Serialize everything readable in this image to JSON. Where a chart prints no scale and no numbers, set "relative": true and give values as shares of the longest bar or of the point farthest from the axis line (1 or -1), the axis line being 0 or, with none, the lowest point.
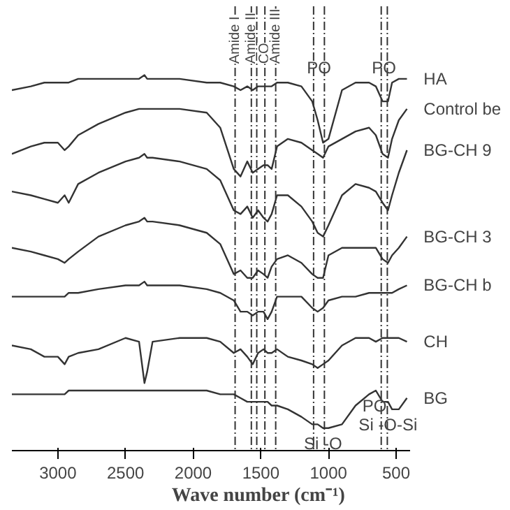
{
  "chart_data": {
    "type": "line",
    "relative": true,
    "xlabel": "Wave number (cm⁻¹)",
    "xlim": [
      3340,
      400
    ],
    "xticks": [
      3000,
      2500,
      2000,
      1500,
      1000,
      500
    ],
    "grid": false,
    "x": [
      3340,
      3200,
      3100,
      3000,
      2950,
      2920,
      2850,
      2700,
      2500,
      2400,
      2360,
      2340,
      2300,
      2100,
      1900,
      1800,
      1700,
      1650,
      1600,
      1560,
      1520,
      1480,
      1450,
      1420,
      1380,
      1300,
      1200,
      1120,
      1080,
      1040,
      1000,
      900,
      800,
      700,
      650,
      600,
      560,
      530,
      480,
      420
    ],
    "series": [
      {
        "name": "HA",
        "color": "#333333",
        "values": [
          0.96,
          0.97,
          0.98,
          0.98,
          0.98,
          0.98,
          0.99,
          0.99,
          0.99,
          0.99,
          1,
          0.99,
          0.99,
          0.99,
          0.98,
          0.98,
          0.97,
          0.96,
          0.97,
          0.96,
          0.97,
          0.97,
          0.97,
          0.97,
          0.98,
          0.98,
          0.97,
          0.93,
          0.88,
          0.82,
          0.83,
          0.96,
          0.98,
          0.98,
          0.97,
          0.93,
          0.93,
          0.98,
          0.99,
          0.99
        ]
      },
      {
        "name": "Control be",
        "color": "#333333",
        "values": [
          0.79,
          0.81,
          0.82,
          0.82,
          0.8,
          0.81,
          0.84,
          0.87,
          0.9,
          0.91,
          0.91,
          0.91,
          0.91,
          0.91,
          0.9,
          0.86,
          0.75,
          0.73,
          0.77,
          0.74,
          0.75,
          0.76,
          0.76,
          0.75,
          0.81,
          0.83,
          0.82,
          0.8,
          0.79,
          0.78,
          0.81,
          0.83,
          0.85,
          0.86,
          0.84,
          0.79,
          0.78,
          0.83,
          0.88,
          0.91
        ]
      },
      {
        "name": "BG-CH 9",
        "color": "#333333",
        "values": [
          0.69,
          0.68,
          0.67,
          0.66,
          0.68,
          0.66,
          0.71,
          0.74,
          0.77,
          0.78,
          0.79,
          0.78,
          0.78,
          0.77,
          0.75,
          0.72,
          0.64,
          0.63,
          0.65,
          0.62,
          0.64,
          0.62,
          0.61,
          0.63,
          0.68,
          0.68,
          0.65,
          0.61,
          0.58,
          0.57,
          0.6,
          0.68,
          0.71,
          0.7,
          0.69,
          0.66,
          0.64,
          0.68,
          0.74,
          0.8
        ]
      },
      {
        "name": "BG-CH 3",
        "color": "#333333",
        "values": [
          0.54,
          0.53,
          0.52,
          0.51,
          0.5,
          0.51,
          0.53,
          0.57,
          0.6,
          0.61,
          0.62,
          0.61,
          0.61,
          0.6,
          0.58,
          0.55,
          0.47,
          0.48,
          0.46,
          0.46,
          0.48,
          0.47,
          0.46,
          0.49,
          0.51,
          0.52,
          0.5,
          0.47,
          0.46,
          0.46,
          0.52,
          0.54,
          0.54,
          0.54,
          0.54,
          0.51,
          0.5,
          0.52,
          0.54,
          0.57
        ]
      },
      {
        "name": "BG-CH b",
        "color": "#333333",
        "values": [
          0.41,
          0.41,
          0.41,
          0.41,
          0.41,
          0.42,
          0.42,
          0.43,
          0.44,
          0.44,
          0.45,
          0.44,
          0.44,
          0.44,
          0.43,
          0.42,
          0.4,
          0.37,
          0.37,
          0.36,
          0.37,
          0.37,
          0.35,
          0.37,
          0.41,
          0.41,
          0.41,
          0.38,
          0.37,
          0.38,
          0.4,
          0.41,
          0.41,
          0.42,
          0.42,
          0.42,
          0.42,
          0.42,
          0.43,
          0.44
        ]
      },
      {
        "name": "CH",
        "color": "#333333",
        "values": [
          0.28,
          0.27,
          0.25,
          0.25,
          0.23,
          0.25,
          0.26,
          0.27,
          0.3,
          0.29,
          0.18,
          0.21,
          0.29,
          0.3,
          0.3,
          0.29,
          0.26,
          0.27,
          0.25,
          0.23,
          0.26,
          0.27,
          0.26,
          0.26,
          0.27,
          0.25,
          0.24,
          0.23,
          0.22,
          0.23,
          0.24,
          0.28,
          0.3,
          0.3,
          0.29,
          0.3,
          0.3,
          0.3,
          0.3,
          0.29
        ]
      },
      {
        "name": "BG",
        "color": "#333333",
        "values": [
          0.15,
          0.15,
          0.15,
          0.15,
          0.15,
          0.16,
          0.16,
          0.16,
          0.16,
          0.16,
          0.16,
          0.16,
          0.16,
          0.16,
          0.16,
          0.15,
          0.15,
          0.14,
          0.13,
          0.13,
          0.13,
          0.13,
          0.13,
          0.12,
          0.12,
          0.11,
          0.09,
          0.07,
          0.07,
          0.06,
          0.06,
          0.07,
          0.12,
          0.15,
          0.16,
          0.13,
          0.13,
          0.11,
          0.11,
          0.14
        ]
      }
    ],
    "ref_lines": [
      {
        "axis": "x",
        "value": 1690,
        "label": "Amide I",
        "line_style": "dashed",
        "color": "#333333"
      },
      {
        "axis": "x",
        "value": 1570,
        "label": "Amide II",
        "line_style": "dashed",
        "color": "#333333"
      },
      {
        "axis": "x",
        "value": 1530,
        "label": null,
        "line_style": "dashed",
        "color": "#333333"
      },
      {
        "axis": "x",
        "value": 1470,
        "label": "CO",
        "line_style": "dashed",
        "color": "#333333"
      },
      {
        "axis": "x",
        "value": 1390,
        "label": "Amide III",
        "line_style": "dashed",
        "color": "#333333"
      },
      {
        "axis": "x",
        "value": 1110,
        "label": null,
        "line_style": "dashed",
        "color": "#333333"
      },
      {
        "axis": "x",
        "value": 1030,
        "label": null,
        "line_style": "dashed",
        "color": "#333333"
      },
      {
        "axis": "x",
        "value": 610,
        "label": null,
        "line_style": "dashed",
        "color": "#333333"
      },
      {
        "axis": "x",
        "value": 565,
        "label": null,
        "line_style": "dashed",
        "color": "#333333"
      }
    ],
    "annotations": [
      {
        "text": "PO",
        "x": 1070,
        "y": 1.02
      },
      {
        "text": "PO",
        "x": 590,
        "y": 1.02
      },
      {
        "text": "PO",
        "x": 660,
        "y": 0.16
      },
      {
        "text": "Si -O",
        "x": 1040,
        "y": 0.06
      },
      {
        "text": "Si -O-Si",
        "x": 560,
        "y": 0.11
      }
    ]
  }
}
